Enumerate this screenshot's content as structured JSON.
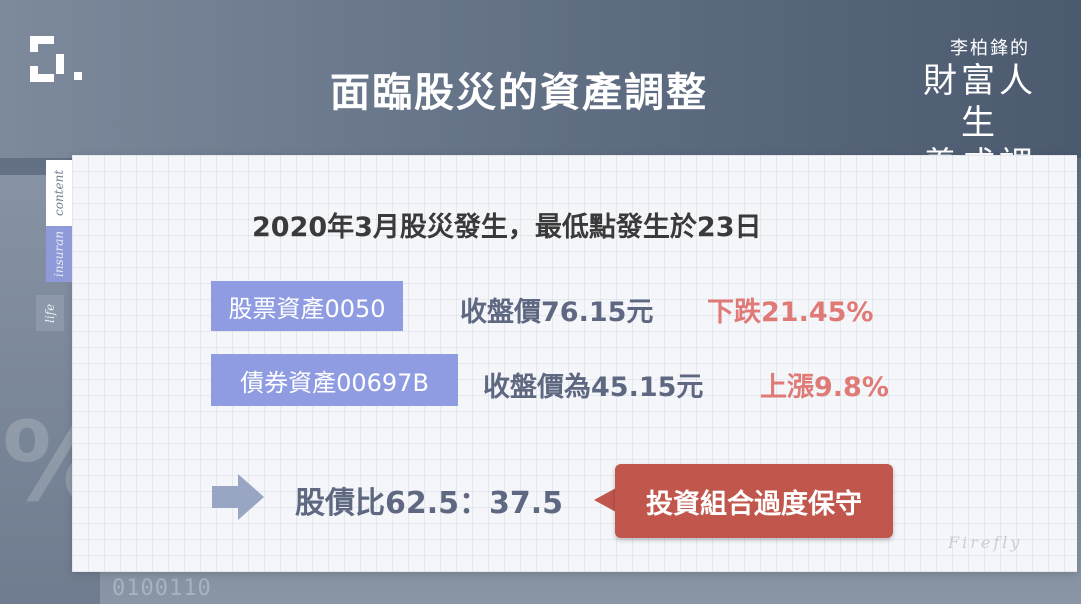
{
  "header": {
    "title": "面臨股災的資產調整",
    "brand_small": "李柏鋒的",
    "brand_line1": "財富人生",
    "brand_line2": "養成課"
  },
  "side_tabs": {
    "content": "content",
    "insurance": "insuran",
    "life": "life"
  },
  "background": {
    "percent": "%",
    "binary": "0100110"
  },
  "main": {
    "headline": "2020年3月股災發生，最低點發生於23日",
    "rows": [
      {
        "tag": "股票資產0050",
        "price": "收盤價76.15元",
        "change": "下跌21.45%"
      },
      {
        "tag": "債券資產00697B",
        "price": "收盤價為45.15元",
        "change": "上漲9.8%"
      }
    ],
    "ratio": "股債比62.5：37.5",
    "callout": "投資組合過度保守",
    "watermark": "Firefly"
  },
  "colors": {
    "tag_bg": "#8f9ce2",
    "change_text": "#e07a76",
    "callout_bg": "#c0564c",
    "price_text": "#5e6880"
  },
  "icons": {
    "logo": "bracket-logo-icon",
    "arrow": "arrow-right-icon"
  }
}
